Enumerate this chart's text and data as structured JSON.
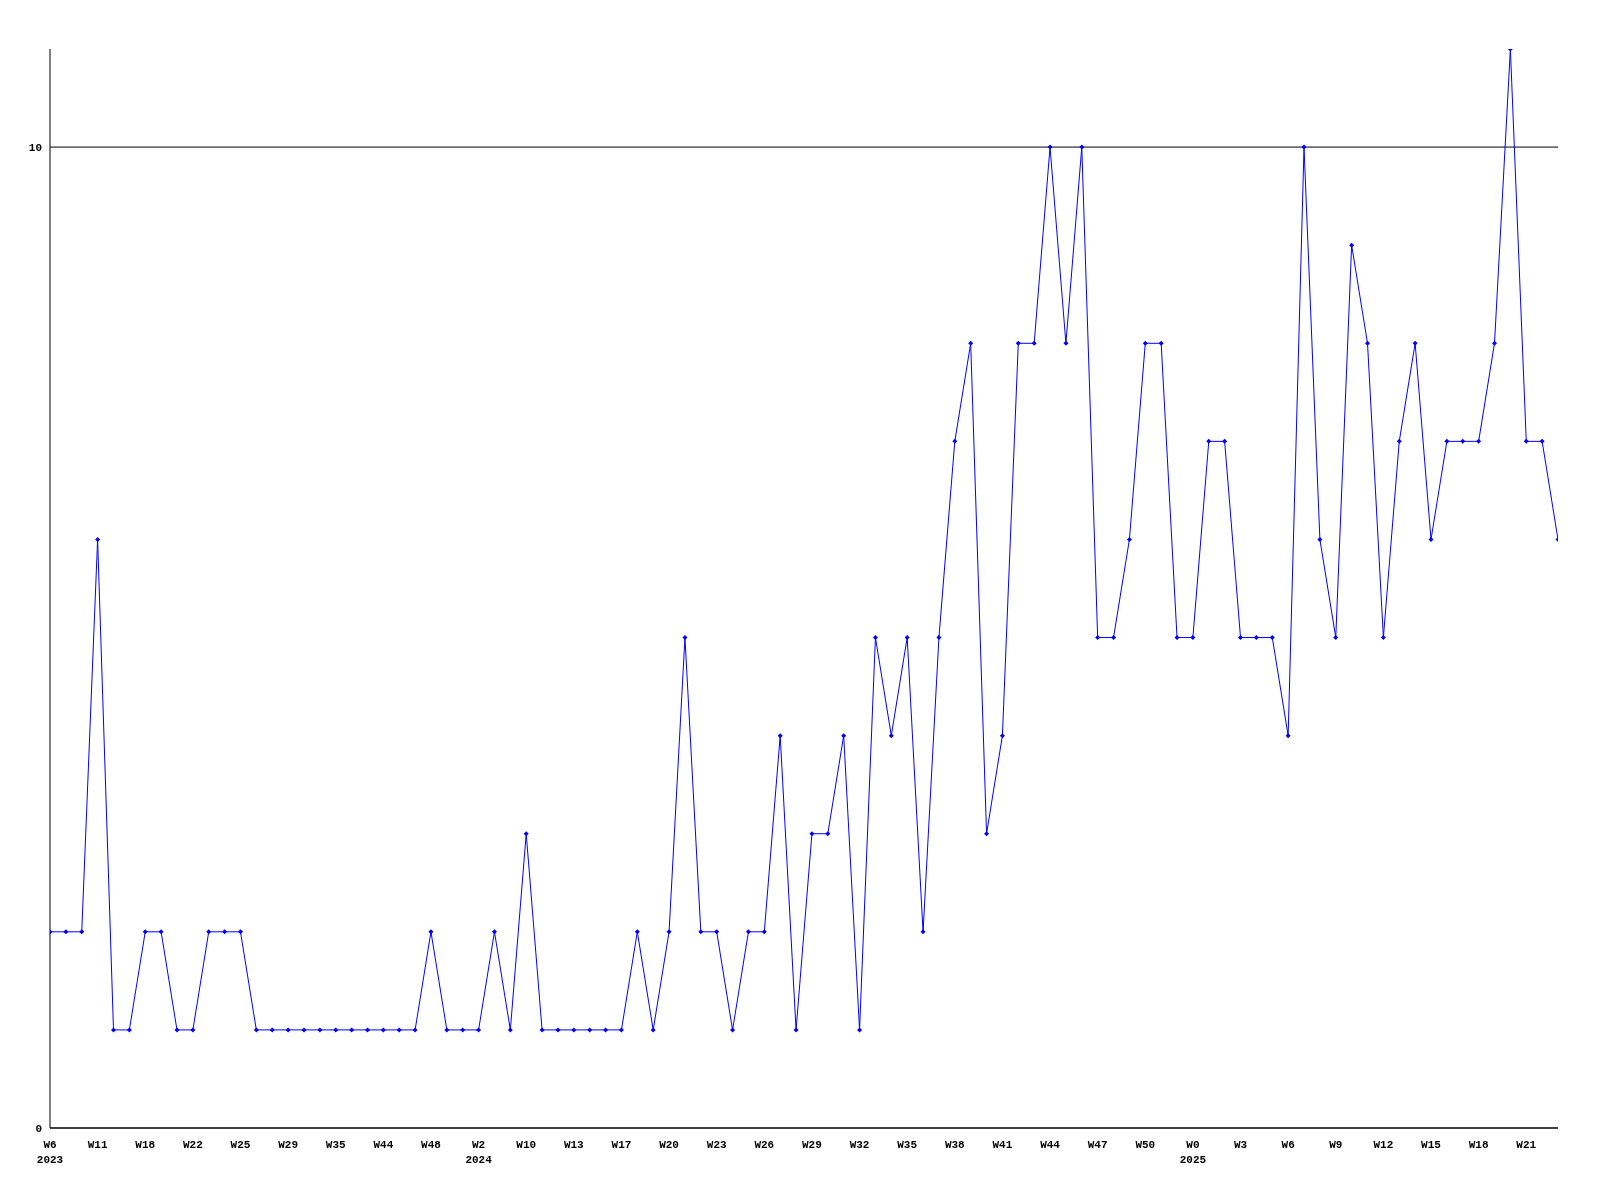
{
  "chart_data": {
    "type": "line",
    "categories": [
      "W6\n2023",
      null,
      null,
      "W11",
      null,
      null,
      "W18",
      null,
      null,
      "W22",
      null,
      null,
      "W25",
      null,
      null,
      "W29",
      null,
      null,
      "W35",
      null,
      null,
      "W44",
      null,
      null,
      "W48",
      null,
      null,
      "W2\n2024",
      null,
      null,
      "W10",
      null,
      null,
      "W13",
      null,
      null,
      "W17",
      null,
      null,
      "W20",
      null,
      null,
      "W23",
      null,
      null,
      "W26",
      null,
      null,
      "W29",
      null,
      null,
      "W32",
      null,
      null,
      "W35",
      null,
      null,
      "W38",
      null,
      null,
      "W41",
      null,
      null,
      "W44",
      null,
      null,
      "W47",
      null,
      null,
      "W50",
      null,
      null,
      "W0\n2025",
      null,
      null,
      "W3",
      null,
      null,
      "W6",
      null,
      null,
      "W9",
      null,
      null,
      "W12",
      null,
      null,
      "W15",
      null,
      null,
      "W18",
      null,
      null,
      "W21",
      null,
      null
    ],
    "series": [
      {
        "color": "#0000ff",
        "values": [
          2,
          2,
          2,
          6,
          1,
          1,
          2,
          2,
          1,
          1,
          2,
          2,
          2,
          1,
          1,
          1,
          1,
          1,
          1,
          1,
          1,
          1,
          1,
          1,
          2,
          1,
          1,
          1,
          2,
          1,
          3,
          1,
          1,
          1,
          1,
          1,
          1,
          2,
          1,
          2,
          5,
          2,
          2,
          1,
          2,
          2,
          4,
          1,
          3,
          3,
          4,
          1,
          5,
          4,
          5,
          2,
          5,
          7,
          8,
          3,
          4,
          8,
          8,
          10,
          8,
          10,
          5,
          5,
          6,
          8,
          8,
          5,
          5,
          7,
          7,
          5,
          5,
          5,
          4,
          10,
          6,
          5,
          9,
          8,
          5,
          7,
          8,
          6,
          7,
          7,
          7,
          8,
          11,
          7,
          7,
          6
        ]
      }
    ],
    "ylim": [
      0,
      11
    ],
    "yticks": [
      0,
      10
    ],
    "grid": "y",
    "marker": "diamond",
    "line_style": "solid"
  }
}
